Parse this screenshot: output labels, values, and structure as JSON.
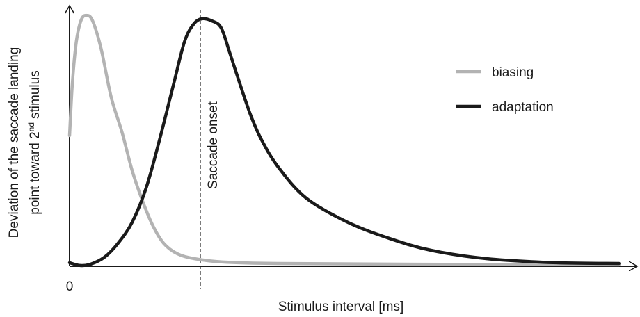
{
  "chart_data": {
    "type": "line",
    "xlabel": "Stimulus interval [ms]",
    "ylabel": [
      "Deviation of the saccade landing",
      "point toward 2",
      "nd",
      "stimulus"
    ],
    "xlim": [
      0,
      100
    ],
    "ylim": [
      0,
      100
    ],
    "xticks": [
      0
    ],
    "legend": "upper right",
    "annotations": [
      {
        "text": "Saccade onset",
        "x": 23.2
      }
    ],
    "series": [
      {
        "name": "biasing",
        "color": "#b3b3b3",
        "x": [
          0,
          0.5,
          1.2,
          2.1,
          3.1,
          4.1,
          5.6,
          7.4,
          9.3,
          11.1,
          13,
          14.8,
          16.7,
          19.1,
          22.2,
          27.2,
          37,
          61.7,
          97.5
        ],
        "values": [
          51.8,
          72.5,
          89,
          97.8,
          99.4,
          97.2,
          86.2,
          66.9,
          53.2,
          38,
          25.6,
          16,
          9.1,
          5,
          3,
          1.7,
          1.1,
          0.8,
          0.6
        ]
      },
      {
        "name": "adaptation",
        "color": "#1a1a1a",
        "x": [
          0,
          1.9,
          3.7,
          6.2,
          8.6,
          11.1,
          13.6,
          16,
          18.5,
          20.4,
          22,
          23.5,
          25.3,
          26.9,
          28.4,
          30.2,
          32.1,
          34,
          37,
          42,
          49.4,
          56.8,
          64.2,
          74.1,
          86.4,
          97.5
        ],
        "values": [
          1.4,
          0.3,
          0.8,
          3.6,
          9.1,
          17.4,
          31.1,
          50.4,
          72.5,
          89,
          95.9,
          98.1,
          97.2,
          94.5,
          84.8,
          72.5,
          60.1,
          50.4,
          39.4,
          27,
          17.4,
          11,
          6.3,
          3,
          1.4,
          1.1
        ]
      }
    ]
  }
}
